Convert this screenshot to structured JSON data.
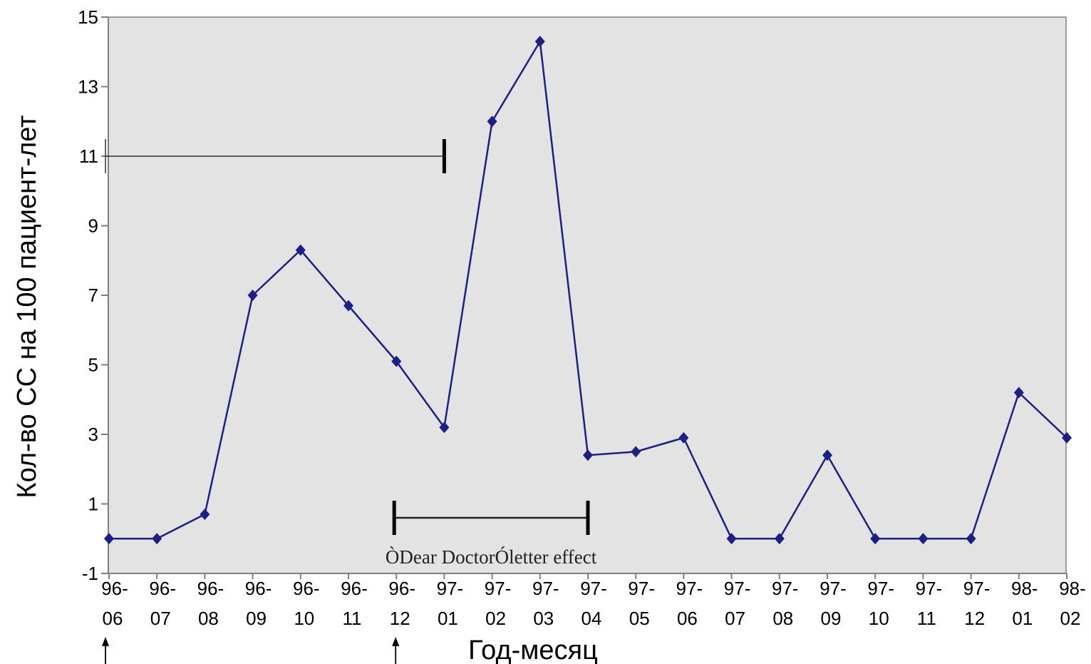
{
  "chart_data": {
    "type": "line",
    "title": "",
    "xlabel": "Год-месяц",
    "ylabel": "Кол-во СС на 100 пациент-лет",
    "ylim": [
      -1,
      15
    ],
    "yticks": [
      "-1",
      "1",
      "3",
      "5",
      "7",
      "9",
      "11",
      "13",
      "15"
    ],
    "categories": [
      {
        "top": "96-",
        "bottom": "06"
      },
      {
        "top": "96-",
        "bottom": "07"
      },
      {
        "top": "96-",
        "bottom": "08"
      },
      {
        "top": "96-",
        "bottom": "09"
      },
      {
        "top": "96-",
        "bottom": "10"
      },
      {
        "top": "96-",
        "bottom": "11"
      },
      {
        "top": "96-",
        "bottom": "12"
      },
      {
        "top": "97-",
        "bottom": "01"
      },
      {
        "top": "97-",
        "bottom": "02"
      },
      {
        "top": "97-",
        "bottom": "03"
      },
      {
        "top": "97-",
        "bottom": "04"
      },
      {
        "top": "97-",
        "bottom": "05"
      },
      {
        "top": "97-",
        "bottom": "06"
      },
      {
        "top": "97-",
        "bottom": "07"
      },
      {
        "top": "97-",
        "bottom": "08"
      },
      {
        "top": "97-",
        "bottom": "09"
      },
      {
        "top": "97-",
        "bottom": "10"
      },
      {
        "top": "97-",
        "bottom": "11"
      },
      {
        "top": "97-",
        "bottom": "12"
      },
      {
        "top": "98-",
        "bottom": "01"
      },
      {
        "top": "98-",
        "bottom": "02"
      }
    ],
    "series": [
      {
        "values": [
          0,
          0,
          0.7,
          7.0,
          8.3,
          6.7,
          5.1,
          3.2,
          12.0,
          14.3,
          2.4,
          2.5,
          2.9,
          0,
          0,
          2.4,
          0,
          0,
          0,
          4.2,
          2.9
        ]
      }
    ],
    "annotations": {
      "text": "ÒDear DoctorÓletter effect",
      "range_upper": {
        "from": "96-06",
        "to": "97-01",
        "y": 11
      },
      "range_lower": {
        "from": "96-12",
        "to": "97-04",
        "y": 0.6
      },
      "arrows": [
        "96-06",
        "96-12"
      ]
    },
    "grid": false,
    "legend": "none",
    "colors": {
      "series": "#1c1f86",
      "plot_bg": "#e3e3e3",
      "axis": "#7f7f7f"
    }
  }
}
